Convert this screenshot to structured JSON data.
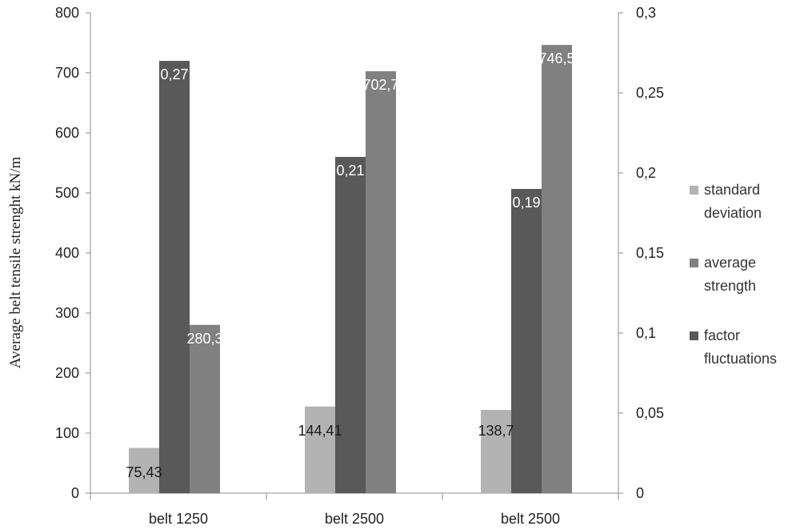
{
  "chart_data": {
    "type": "bar",
    "categories": [
      "belt 1250",
      "belt 2500",
      "belt 2500"
    ],
    "ylabel": "Average belt tensile strenght  kN/m",
    "ylim": [
      0,
      800
    ],
    "y_ticks": [
      "0",
      "100",
      "200",
      "300",
      "400",
      "500",
      "600",
      "700",
      "800"
    ],
    "y2lim": [
      0,
      0.3
    ],
    "y2_ticks": [
      "0",
      "0,05",
      "0,1",
      "0,15",
      "0,2",
      "0,25",
      "0,3"
    ],
    "grid": false,
    "legend_position": "right",
    "series": [
      {
        "name": "standard deviation",
        "axis": "left",
        "color": "#b3b3b3",
        "values": [
          75.43,
          144.41,
          138.7
        ],
        "labels": [
          "75,43",
          "144,41",
          "138,7"
        ],
        "label_color": "#1a1a1a"
      },
      {
        "name": "factor fluctuations",
        "axis": "right",
        "color": "#595959",
        "values": [
          0.27,
          0.21,
          0.19
        ],
        "labels": [
          "0,27",
          "0,21",
          "0,19"
        ],
        "label_color": "#ffffff"
      },
      {
        "name": "average strength",
        "axis": "left",
        "color": "#808080",
        "values": [
          280.3,
          702.7,
          746.5
        ],
        "labels": [
          "280,3",
          "702,7",
          "746,5"
        ],
        "label_color": "#ffffff"
      }
    ],
    "legend": [
      {
        "line1": "standard",
        "line2": "deviation",
        "color": "#b3b3b3"
      },
      {
        "line1": "average",
        "line2": "strength",
        "color": "#808080"
      },
      {
        "line1": " factor",
        "line2": "fluctuations",
        "color": "#595959"
      }
    ]
  }
}
